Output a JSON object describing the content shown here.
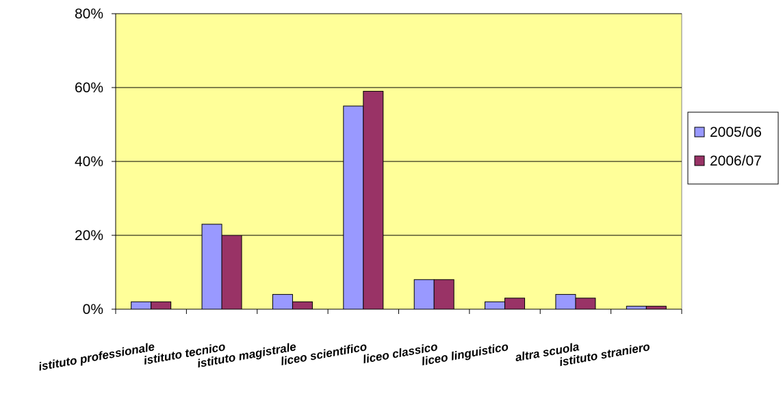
{
  "chart_data": {
    "type": "bar",
    "title": "",
    "xlabel": "",
    "ylabel": "",
    "categories": [
      "istituto professionale",
      "istituto tecnico",
      "istituto magistrale",
      "liceo scientifico",
      "liceo classico",
      "liceo linguistico",
      "altra scuola",
      "istituto straniero"
    ],
    "series": [
      {
        "name": "2005/06",
        "values": [
          2,
          23,
          4,
          55,
          8,
          2,
          4,
          0.8
        ]
      },
      {
        "name": "2006/07",
        "values": [
          2,
          20,
          2,
          59,
          8,
          3,
          3,
          0.8
        ]
      }
    ],
    "ylim": [
      0,
      80
    ],
    "yticks": [
      0,
      20,
      40,
      60,
      80
    ],
    "ytick_labels": [
      "0%",
      "20%",
      "40%",
      "60%",
      "80%"
    ],
    "grid": true,
    "legend_position": "right",
    "colors": {
      "plot_background": "#ffff99",
      "series": [
        "#9999ff",
        "#993366"
      ],
      "gridline": "#000000"
    }
  }
}
